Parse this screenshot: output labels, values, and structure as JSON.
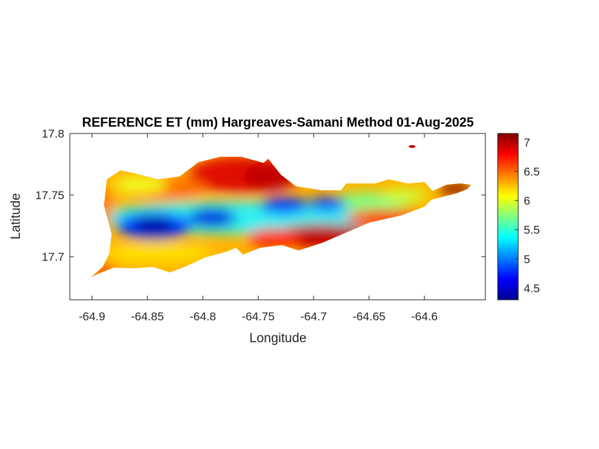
{
  "chart_data": {
    "type": "heatmap",
    "title": "REFERENCE ET (mm) Hargreaves-Samani Method  01-Aug-2025",
    "xlabel": "Longitude",
    "ylabel": "Latitude",
    "xlim": [
      -64.92,
      -64.545
    ],
    "ylim": [
      17.665,
      17.8
    ],
    "x_ticks": [
      -64.9,
      -64.85,
      -64.8,
      -64.75,
      -64.7,
      -64.65,
      -64.6
    ],
    "x_tick_labels": [
      "-64.9",
      "-64.85",
      "-64.8",
      "-64.75",
      "-64.7",
      "-64.65",
      "-64.6"
    ],
    "y_ticks": [
      17.7,
      17.75,
      17.8
    ],
    "y_tick_labels": [
      "17.7",
      "17.75",
      "17.8"
    ],
    "colorbar": {
      "colormap": "jet",
      "range": [
        4.3,
        7.15
      ],
      "ticks": [
        4.5,
        5,
        5.5,
        6,
        6.5,
        7
      ],
      "tick_labels": [
        "4.5",
        "5",
        "5.5",
        "6",
        "6.5",
        "7"
      ]
    },
    "grid": false,
    "field_description_points": [
      {
        "lon": -64.85,
        "lat": 17.725,
        "value": 4.4
      },
      {
        "lon": -64.82,
        "lat": 17.727,
        "value": 4.8
      },
      {
        "lon": -64.73,
        "lat": 17.742,
        "value": 4.9
      },
      {
        "lon": -64.69,
        "lat": 17.742,
        "value": 5.0
      },
      {
        "lon": -64.77,
        "lat": 17.77,
        "value": 6.9
      },
      {
        "lon": -64.72,
        "lat": 17.725,
        "value": 7.0
      },
      {
        "lon": -64.58,
        "lat": 17.754,
        "value": 7.0
      },
      {
        "lon": -64.65,
        "lat": 17.748,
        "value": 6.0
      }
    ]
  }
}
